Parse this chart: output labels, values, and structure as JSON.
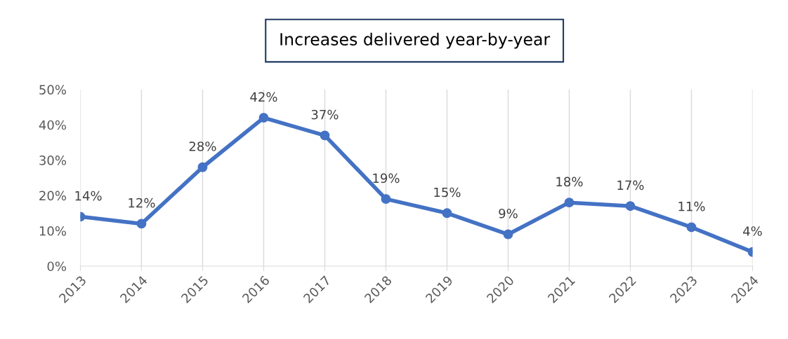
{
  "chart_data": {
    "type": "line",
    "title": "Increases delivered year-by-year",
    "categories": [
      "2013",
      "2014",
      "2015",
      "2016",
      "2017",
      "2018",
      "2019",
      "2020",
      "2021",
      "2022",
      "2023",
      "2024"
    ],
    "series": [
      {
        "color": "#4472c4",
        "values": [
          14,
          12,
          28,
          42,
          37,
          19,
          15,
          9,
          18,
          17,
          11,
          4
        ],
        "value_labels": [
          "14%",
          "12%",
          "28%",
          "42%",
          "37%",
          "19%",
          "15%",
          "9%",
          "18%",
          "17%",
          "11%",
          "4%"
        ]
      }
    ],
    "ylim": [
      0,
      50
    ],
    "yticks": [
      {
        "value": 0,
        "label": "0%"
      },
      {
        "value": 10,
        "label": "10%"
      },
      {
        "value": 20,
        "label": "20%"
      },
      {
        "value": 30,
        "label": "30%"
      },
      {
        "value": 40,
        "label": "40%"
      },
      {
        "value": 50,
        "label": "50%"
      }
    ],
    "grid": "x",
    "marker": "circle",
    "line_style": "solid"
  }
}
